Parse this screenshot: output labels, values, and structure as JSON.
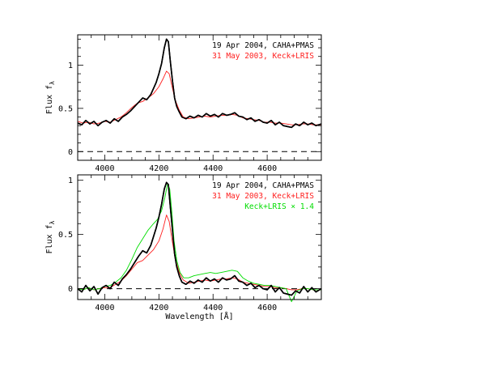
{
  "chart_data": [
    {
      "type": "line",
      "panel": "top",
      "xlim": [
        3900,
        4800
      ],
      "ylim": [
        -0.1,
        1.35
      ],
      "xticks": [
        4000,
        4200,
        4400,
        4600
      ],
      "yticks": [
        0,
        0.5,
        1
      ],
      "ylabel_text": "Flux  f",
      "ylabel_subscript": "λ",
      "xlabel": "",
      "zero_line": true,
      "legend": [
        "19 Apr 2004, CAHA+PMAS",
        "31 May 2003, Keck+LRIS"
      ],
      "colors": [
        "#000000",
        "#ff2020"
      ],
      "series": [
        {
          "name": "19 Apr 2004, CAHA+PMAS",
          "color": "#000000",
          "x": [
            3900,
            3915,
            3930,
            3945,
            3960,
            3975,
            3990,
            4005,
            4020,
            4035,
            4050,
            4065,
            4080,
            4095,
            4110,
            4125,
            4140,
            4155,
            4170,
            4180,
            4190,
            4200,
            4210,
            4220,
            4228,
            4235,
            4242,
            4250,
            4258,
            4266,
            4275,
            4285,
            4300,
            4315,
            4330,
            4345,
            4360,
            4375,
            4390,
            4405,
            4420,
            4435,
            4450,
            4465,
            4480,
            4495,
            4510,
            4525,
            4540,
            4555,
            4570,
            4585,
            4600,
            4615,
            4630,
            4645,
            4660,
            4675,
            4690,
            4705,
            4720,
            4735,
            4750,
            4765,
            4780,
            4800
          ],
          "y": [
            0.33,
            0.31,
            0.36,
            0.32,
            0.35,
            0.3,
            0.34,
            0.36,
            0.33,
            0.38,
            0.35,
            0.4,
            0.43,
            0.47,
            0.52,
            0.57,
            0.62,
            0.6,
            0.66,
            0.73,
            0.8,
            0.9,
            1.02,
            1.2,
            1.3,
            1.27,
            1.05,
            0.82,
            0.62,
            0.52,
            0.46,
            0.4,
            0.38,
            0.41,
            0.39,
            0.42,
            0.4,
            0.44,
            0.41,
            0.43,
            0.4,
            0.44,
            0.42,
            0.43,
            0.45,
            0.41,
            0.4,
            0.37,
            0.39,
            0.35,
            0.37,
            0.34,
            0.33,
            0.36,
            0.31,
            0.34,
            0.3,
            0.29,
            0.28,
            0.32,
            0.3,
            0.34,
            0.31,
            0.33,
            0.3,
            0.32
          ]
        },
        {
          "name": "31 May 2003, Keck+LRIS",
          "color": "#ff2020",
          "x": [
            3900,
            3920,
            3940,
            3960,
            3980,
            4000,
            4020,
            4040,
            4060,
            4080,
            4100,
            4120,
            4140,
            4160,
            4180,
            4200,
            4215,
            4228,
            4238,
            4248,
            4260,
            4275,
            4290,
            4310,
            4330,
            4350,
            4370,
            4390,
            4410,
            4430,
            4450,
            4470,
            4490,
            4510,
            4530,
            4550,
            4570,
            4590,
            4610,
            4630,
            4650,
            4670,
            4690,
            4710,
            4730,
            4750,
            4770,
            4800
          ],
          "y": [
            0.35,
            0.33,
            0.34,
            0.32,
            0.33,
            0.35,
            0.34,
            0.37,
            0.4,
            0.45,
            0.51,
            0.56,
            0.58,
            0.62,
            0.67,
            0.75,
            0.84,
            0.93,
            0.9,
            0.76,
            0.6,
            0.48,
            0.4,
            0.38,
            0.39,
            0.4,
            0.41,
            0.4,
            0.41,
            0.42,
            0.42,
            0.43,
            0.42,
            0.39,
            0.38,
            0.37,
            0.36,
            0.34,
            0.34,
            0.33,
            0.33,
            0.32,
            0.31,
            0.31,
            0.32,
            0.32,
            0.31,
            0.31
          ]
        }
      ]
    },
    {
      "type": "line",
      "panel": "bottom",
      "xlim": [
        3900,
        4800
      ],
      "ylim": [
        -0.1,
        1.05
      ],
      "xticks": [
        4000,
        4200,
        4400,
        4600
      ],
      "yticks": [
        0,
        0.5,
        1
      ],
      "ylabel_text": "Flux  f",
      "ylabel_subscript": "λ",
      "xlabel": "Wavelength [Å]",
      "zero_line": true,
      "legend": [
        "19 Apr 2004, CAHA+PMAS",
        "31 May 2003, Keck+LRIS",
        "Keck+LRIS × 1.4"
      ],
      "colors": [
        "#000000",
        "#ff2020",
        "#00dd00"
      ],
      "series": [
        {
          "name": "19 Apr 2004, CAHA+PMAS",
          "color": "#000000",
          "x": [
            3900,
            3915,
            3930,
            3945,
            3960,
            3975,
            3990,
            4005,
            4020,
            4035,
            4050,
            4065,
            4080,
            4095,
            4110,
            4125,
            4140,
            4155,
            4170,
            4180,
            4190,
            4200,
            4210,
            4220,
            4228,
            4235,
            4242,
            4250,
            4258,
            4266,
            4275,
            4285,
            4300,
            4315,
            4330,
            4345,
            4360,
            4375,
            4390,
            4405,
            4420,
            4435,
            4450,
            4465,
            4480,
            4495,
            4510,
            4525,
            4540,
            4555,
            4570,
            4585,
            4600,
            4615,
            4630,
            4645,
            4660,
            4675,
            4690,
            4705,
            4720,
            4735,
            4750,
            4765,
            4780,
            4800
          ],
          "y": [
            0.0,
            -0.03,
            0.03,
            -0.02,
            0.02,
            -0.05,
            0.01,
            0.03,
            0.0,
            0.06,
            0.03,
            0.09,
            0.13,
            0.18,
            0.24,
            0.3,
            0.35,
            0.33,
            0.4,
            0.48,
            0.56,
            0.66,
            0.78,
            0.92,
            0.98,
            0.96,
            0.76,
            0.54,
            0.32,
            0.2,
            0.12,
            0.06,
            0.04,
            0.07,
            0.05,
            0.08,
            0.06,
            0.1,
            0.07,
            0.09,
            0.06,
            0.1,
            0.08,
            0.09,
            0.12,
            0.07,
            0.06,
            0.03,
            0.05,
            0.01,
            0.03,
            0.0,
            -0.01,
            0.03,
            -0.03,
            0.01,
            -0.04,
            -0.05,
            -0.06,
            -0.02,
            -0.04,
            0.02,
            -0.03,
            0.01,
            -0.03,
            0.0
          ]
        },
        {
          "name": "31 May 2003, Keck+LRIS",
          "color": "#ff2020",
          "x": [
            3900,
            3920,
            3940,
            3960,
            3980,
            4000,
            4020,
            4040,
            4060,
            4080,
            4100,
            4120,
            4140,
            4160,
            4180,
            4200,
            4215,
            4228,
            4238,
            4248,
            4260,
            4275,
            4290,
            4310,
            4330,
            4350,
            4370,
            4390,
            4410,
            4430,
            4450,
            4470,
            4490,
            4510,
            4530,
            4550,
            4570,
            4590,
            4610,
            4630,
            4650,
            4670,
            4690,
            4710,
            4730,
            4750,
            4770,
            4800
          ],
          "y": [
            0.0,
            -0.01,
            0.01,
            -0.01,
            0.0,
            0.01,
            0.01,
            0.04,
            0.07,
            0.12,
            0.18,
            0.24,
            0.26,
            0.31,
            0.36,
            0.44,
            0.55,
            0.68,
            0.62,
            0.46,
            0.28,
            0.15,
            0.08,
            0.05,
            0.06,
            0.07,
            0.08,
            0.07,
            0.08,
            0.09,
            0.09,
            0.1,
            0.09,
            0.06,
            0.05,
            0.04,
            0.03,
            0.02,
            0.02,
            0.01,
            0.01,
            0.0,
            -0.01,
            -0.01,
            0.0,
            0.0,
            -0.01,
            -0.01
          ]
        },
        {
          "name": "Keck+LRIS × 1.4",
          "color": "#00dd00",
          "x": [
            3900,
            3920,
            3940,
            3960,
            3980,
            4000,
            4020,
            4040,
            4060,
            4080,
            4100,
            4120,
            4140,
            4160,
            4180,
            4195,
            4210,
            4222,
            4232,
            4240,
            4248,
            4256,
            4266,
            4278,
            4292,
            4310,
            4330,
            4350,
            4370,
            4390,
            4410,
            4430,
            4450,
            4470,
            4490,
            4510,
            4530,
            4550,
            4570,
            4590,
            4610,
            4630,
            4650,
            4670,
            4690,
            4710,
            4730,
            4750,
            4770,
            4800
          ],
          "y": [
            0.0,
            -0.01,
            0.01,
            -0.01,
            0.0,
            0.02,
            0.03,
            0.06,
            0.1,
            0.17,
            0.27,
            0.38,
            0.46,
            0.54,
            0.6,
            0.64,
            0.72,
            0.84,
            0.97,
            0.92,
            0.7,
            0.44,
            0.26,
            0.15,
            0.1,
            0.1,
            0.12,
            0.13,
            0.14,
            0.15,
            0.14,
            0.15,
            0.16,
            0.17,
            0.16,
            0.1,
            0.07,
            0.05,
            0.04,
            0.03,
            0.03,
            0.02,
            0.01,
            0.0,
            -0.12,
            -0.02,
            0.0,
            0.0,
            -0.01,
            -0.01
          ]
        }
      ]
    }
  ]
}
